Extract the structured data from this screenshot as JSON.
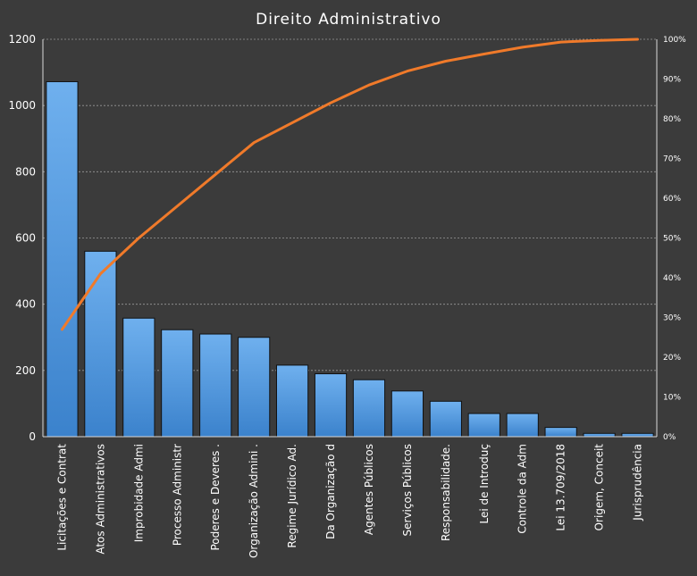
{
  "chart_data": {
    "type": "bar",
    "title": "Direito Administrativo",
    "categories": [
      "Licitações e Contrat",
      "Atos Administrativos",
      "Improbidade Admi",
      "Processo Administr",
      "Poderes e Deveres .",
      "Organização Admini .",
      "Regime Jurídico Ad.",
      "Da Organização d",
      "Agentes Públicos",
      "Serviços Públicos",
      "Responsabilidade.",
      "Lei de Introduç",
      "Controle da Adm",
      "Lei 13.709/2018",
      "Origem, Conceit",
      "Jurisprudência"
    ],
    "series": [
      {
        "type": "bar",
        "values": [
          1072,
          560,
          358,
          323,
          310,
          300,
          216,
          190,
          172,
          138,
          107,
          70,
          70,
          28,
          10,
          10
        ]
      },
      {
        "type": "line",
        "axis": "right",
        "values": [
          0.27,
          0.41,
          0.5,
          0.58,
          0.66,
          0.74,
          0.79,
          0.84,
          0.885,
          0.92,
          0.945,
          0.963,
          0.98,
          0.993,
          0.997,
          1.0
        ]
      }
    ],
    "y_left": {
      "range": [
        0,
        1200
      ],
      "ticks": [
        0,
        200,
        400,
        600,
        800,
        1000,
        1200
      ]
    },
    "y_right": {
      "range": [
        0,
        1
      ],
      "ticks": [
        "0%",
        "10%",
        "20%",
        "30%",
        "40%",
        "50%",
        "60%",
        "70%",
        "80%",
        "90%",
        "100%"
      ]
    },
    "grid": true,
    "colors": {
      "background": "#3b3b3b",
      "bar": "#4a90d9",
      "bar_edge": "#111111",
      "line": "#f07a2a",
      "grid": "#9a9a9a",
      "text": "#ffffff",
      "axis": "#d8d8d8"
    }
  }
}
